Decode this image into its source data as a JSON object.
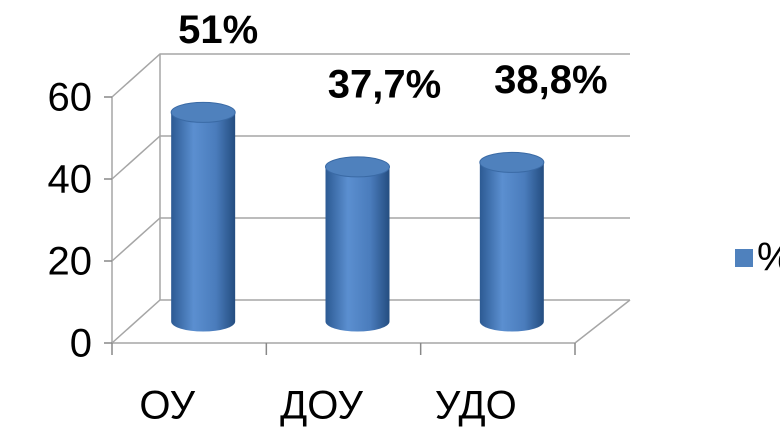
{
  "chart_data": {
    "type": "bar",
    "categories": [
      "ОУ",
      "ДОУ",
      "УДО"
    ],
    "series": [
      {
        "name": "%",
        "color": "#4f81bd",
        "values": [
          51,
          37.7,
          38.8
        ],
        "value_labels": [
          "51%",
          "37,7%",
          "38,8%"
        ]
      }
    ],
    "ylim": [
      0,
      60
    ],
    "yticks": [
      0,
      20,
      40,
      60
    ],
    "grid": true,
    "legend": "right"
  }
}
